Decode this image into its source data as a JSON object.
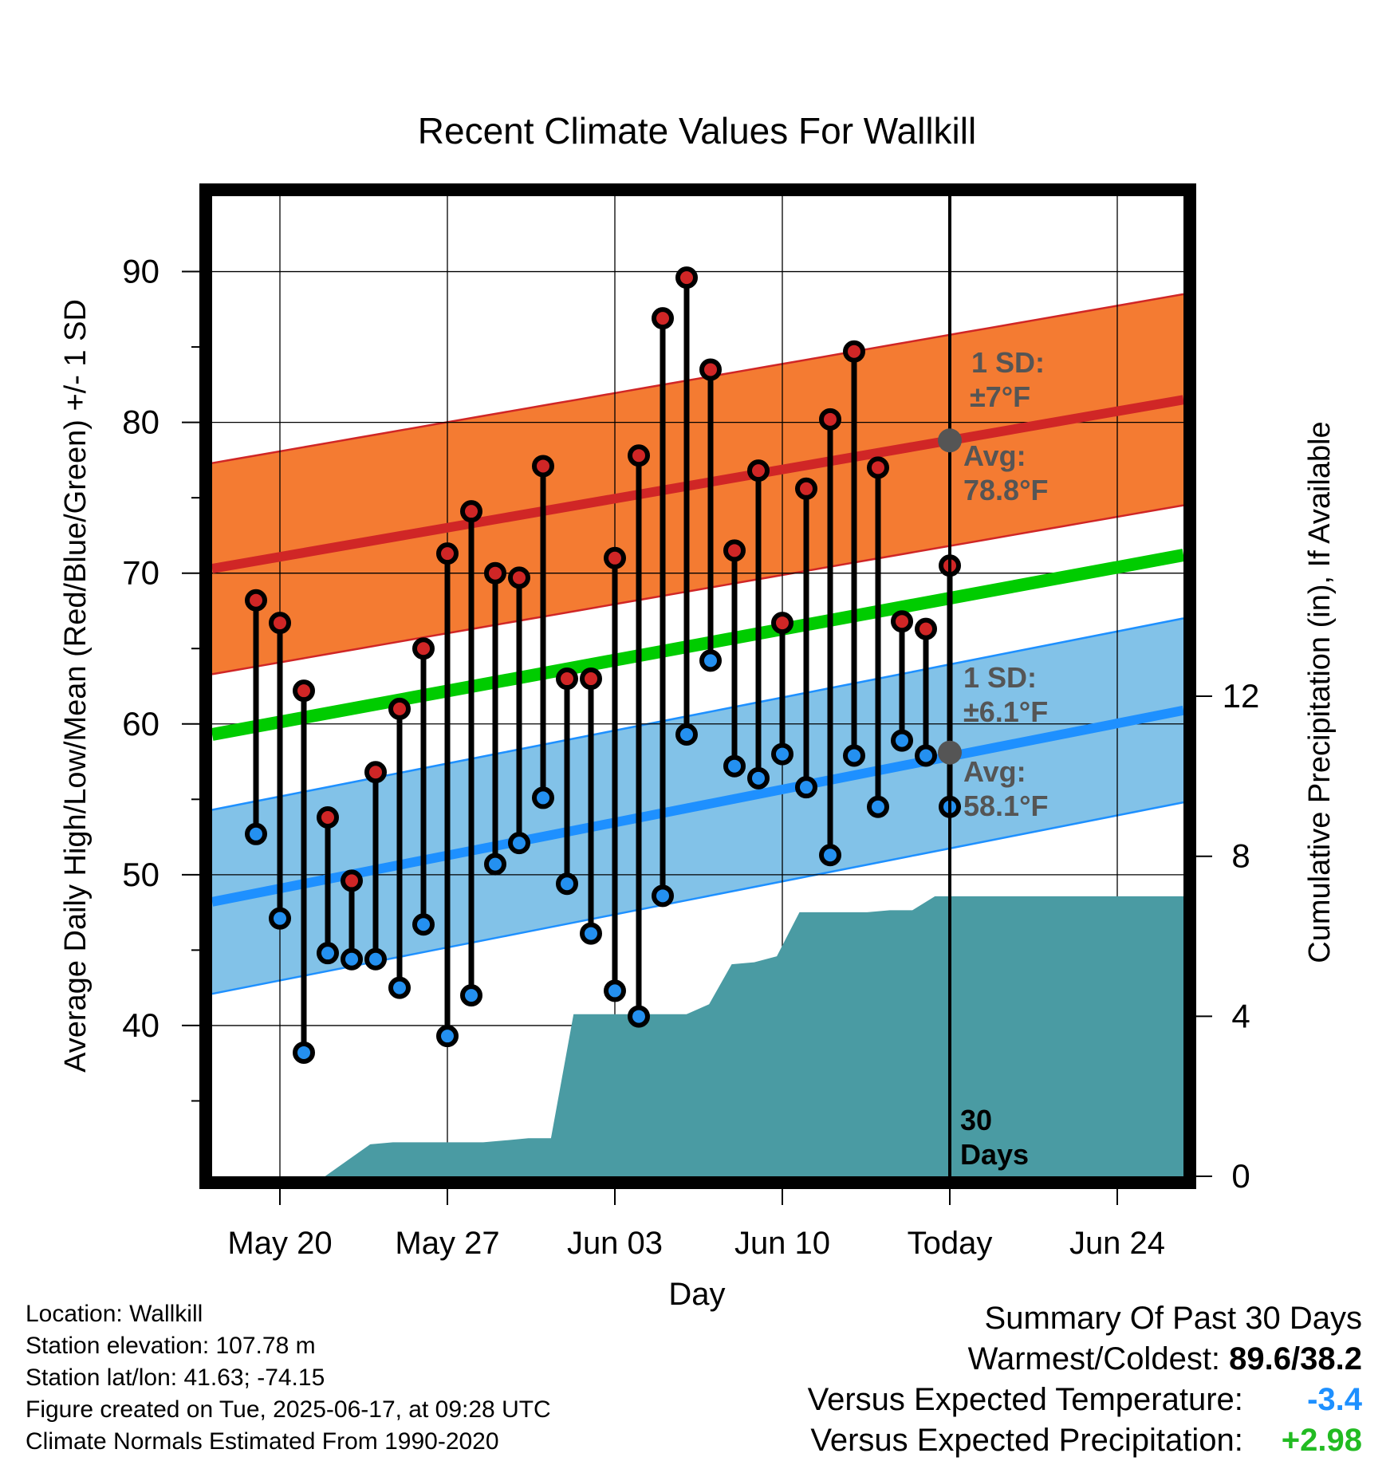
{
  "chart_data": {
    "type": "line",
    "title": "Recent Climate Values For Wallkill",
    "xlabel": "Day",
    "ylabel_left": "Average Daily High/Low/Mean (Red/Blue/Green) +/- 1 SD",
    "ylabel_right": "Cumulative Precipitation (in), If Available",
    "ylim_left": [
      30,
      95
    ],
    "yticks_left": [
      40,
      50,
      60,
      70,
      80,
      90
    ],
    "ylim_right": [
      0,
      24.5
    ],
    "yticks_right": [
      0,
      4,
      8,
      12
    ],
    "x_tick_labels": [
      "May 20",
      "May 27",
      "Jun 03",
      "Jun 10",
      "Today",
      "Jun 24"
    ],
    "grid": true,
    "days": [
      "May 18",
      "May 19",
      "May 20",
      "May 21",
      "May 22",
      "May 23",
      "May 24",
      "May 25",
      "May 26",
      "May 27",
      "May 28",
      "May 29",
      "May 30",
      "May 31",
      "Jun 01",
      "Jun 02",
      "Jun 03",
      "Jun 04",
      "Jun 05",
      "Jun 06",
      "Jun 07",
      "Jun 08",
      "Jun 09",
      "Jun 10",
      "Jun 11",
      "Jun 12",
      "Jun 13",
      "Jun 14",
      "Jun 15",
      "Jun 16"
    ],
    "highs": [
      68.2,
      66.7,
      62.2,
      53.8,
      49.6,
      56.8,
      61.0,
      65.0,
      71.3,
      74.1,
      70.0,
      69.7,
      77.1,
      63.0,
      63.0,
      71.0,
      77.8,
      86.9,
      89.6,
      83.5,
      71.5,
      76.8,
      66.7,
      75.6,
      80.2,
      84.7,
      77.0,
      66.8,
      66.3,
      70.5
    ],
    "lows": [
      52.7,
      47.1,
      38.2,
      44.8,
      44.4,
      44.4,
      42.5,
      46.7,
      39.3,
      42.0,
      50.7,
      52.1,
      55.1,
      49.4,
      46.1,
      42.3,
      40.6,
      48.6,
      59.3,
      64.2,
      57.2,
      56.4,
      58.0,
      55.8,
      51.3,
      57.9,
      54.5,
      58.9,
      57.9,
      54.5
    ],
    "normal_high_range": [
      70.3,
      81.5
    ],
    "normal_high_sd": 7.0,
    "normal_low_range": [
      48.2,
      60.9
    ],
    "normal_low_sd": 6.1,
    "normal_mean_range": [
      59.3,
      71.2
    ],
    "cumulative_precip": [
      0.0,
      0.0,
      0.0,
      0.4,
      0.8,
      0.85,
      0.85,
      0.85,
      0.85,
      0.85,
      0.9,
      0.95,
      0.95,
      4.05,
      4.05,
      4.05,
      4.05,
      4.05,
      4.05,
      4.3,
      5.3,
      5.35,
      5.5,
      6.6,
      6.6,
      6.6,
      6.6,
      6.65,
      6.65,
      7.0,
      7.0,
      7.0,
      7.0,
      7.0,
      7.0,
      7.0,
      7.0,
      7.0,
      7.0,
      7.0,
      7.0
    ],
    "annotations": {
      "high_sd": {
        "line1": "1 SD:",
        "line2": "±7°F"
      },
      "high_avg": {
        "line1": "Avg:",
        "line2": "78.8°F",
        "value": 78.8
      },
      "low_sd": {
        "line1": "1 SD:",
        "line2": "±6.1°F"
      },
      "low_avg": {
        "line1": "Avg:",
        "line2": "58.1°F",
        "value": 58.1
      },
      "today_label": {
        "line1": "30",
        "line2": "Days"
      }
    },
    "colors": {
      "high_band": "#F47B32",
      "high_line": "#D02626",
      "low_band": "#82C2E8",
      "low_line": "#1E90FF",
      "mean_line": "#00CC00",
      "precip_fill": "#4A9BA3",
      "high_marker": "#D02626",
      "low_marker": "#2490F0",
      "annotation_text": "#555555"
    }
  },
  "info": {
    "location": "Location: Wallkill",
    "elevation": "Station elevation: 107.78 m",
    "latlon": "Station lat/lon: 41.63; -74.15",
    "created": "Figure created on Tue, 2025-06-17, at 09:28 UTC",
    "normals": "Climate Normals Estimated From 1990-2020"
  },
  "summary": {
    "title": "Summary Of Past 30 Days",
    "warmest_label": "Warmest/Coldest:",
    "warmest_value": "89.6/38.2",
    "temp_label": "Versus Expected Temperature:",
    "temp_value": "-3.4",
    "temp_color": "#1E90FF",
    "precip_label": "Versus Expected Precipitation:",
    "precip_value": "+2.98",
    "precip_color": "#22BB22"
  }
}
